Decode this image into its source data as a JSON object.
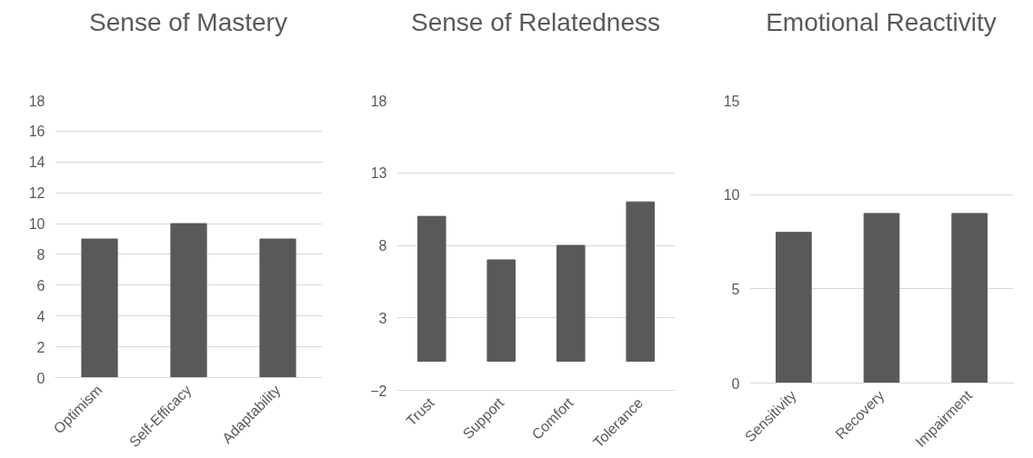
{
  "chart_data": [
    {
      "type": "bar",
      "title": "Sense of Mastery",
      "categories": [
        "Optimism",
        "Self-Efficacy",
        "Adaptability"
      ],
      "values": [
        9,
        10,
        9
      ],
      "color": "#595959",
      "ylim": [
        0,
        18
      ],
      "yticks": [
        0,
        2,
        4,
        6,
        8,
        10,
        12,
        14,
        16,
        18
      ],
      "grid": "y"
    },
    {
      "type": "bar",
      "title": "Sense of Relatedness",
      "categories": [
        "Trust",
        "Support",
        "Comfort",
        "Tolerance"
      ],
      "values": [
        10,
        7,
        8,
        11
      ],
      "color": "#595959",
      "ylim": [
        -2,
        18
      ],
      "yticks": [
        -2,
        3,
        8,
        13,
        18
      ],
      "grid": "y"
    },
    {
      "type": "bar",
      "title": "Emotional Reactivity",
      "categories": [
        "Sensitivity",
        "Recovery",
        "Impairment"
      ],
      "values": [
        8,
        9,
        9
      ],
      "color": "#595959",
      "ylim": [
        0,
        15
      ],
      "yticks": [
        0,
        5,
        10,
        15
      ],
      "grid": "y"
    }
  ]
}
